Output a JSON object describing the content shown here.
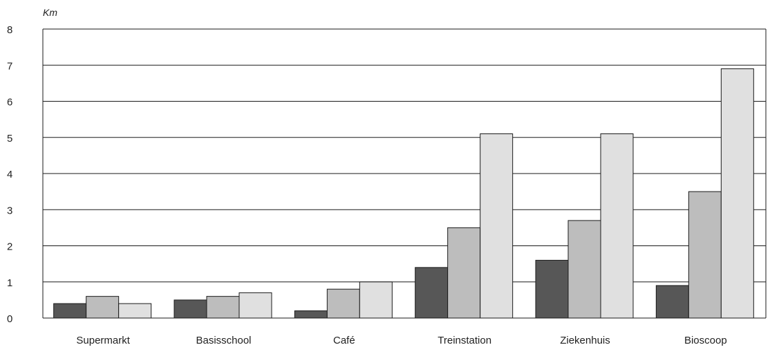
{
  "chart_data": {
    "type": "bar",
    "ylabel": "Km",
    "ylim": [
      0,
      8
    ],
    "yticks": [
      0,
      1,
      2,
      3,
      4,
      5,
      6,
      7,
      8
    ],
    "grid": true,
    "categories": [
      "Supermarkt",
      "Basisschool",
      "Café",
      "Treinstation",
      "Ziekenhuis",
      "Bioscoop"
    ],
    "series": [
      {
        "values": [
          0.4,
          0.5,
          0.2,
          1.4,
          1.6,
          0.9
        ],
        "color": "#575757"
      },
      {
        "values": [
          0.6,
          0.6,
          0.8,
          2.5,
          2.7,
          3.5
        ],
        "color": "#bdbdbd"
      },
      {
        "values": [
          0.4,
          0.7,
          1.0,
          5.1,
          5.1,
          6.9
        ],
        "color": "#e0e0e0"
      }
    ]
  }
}
